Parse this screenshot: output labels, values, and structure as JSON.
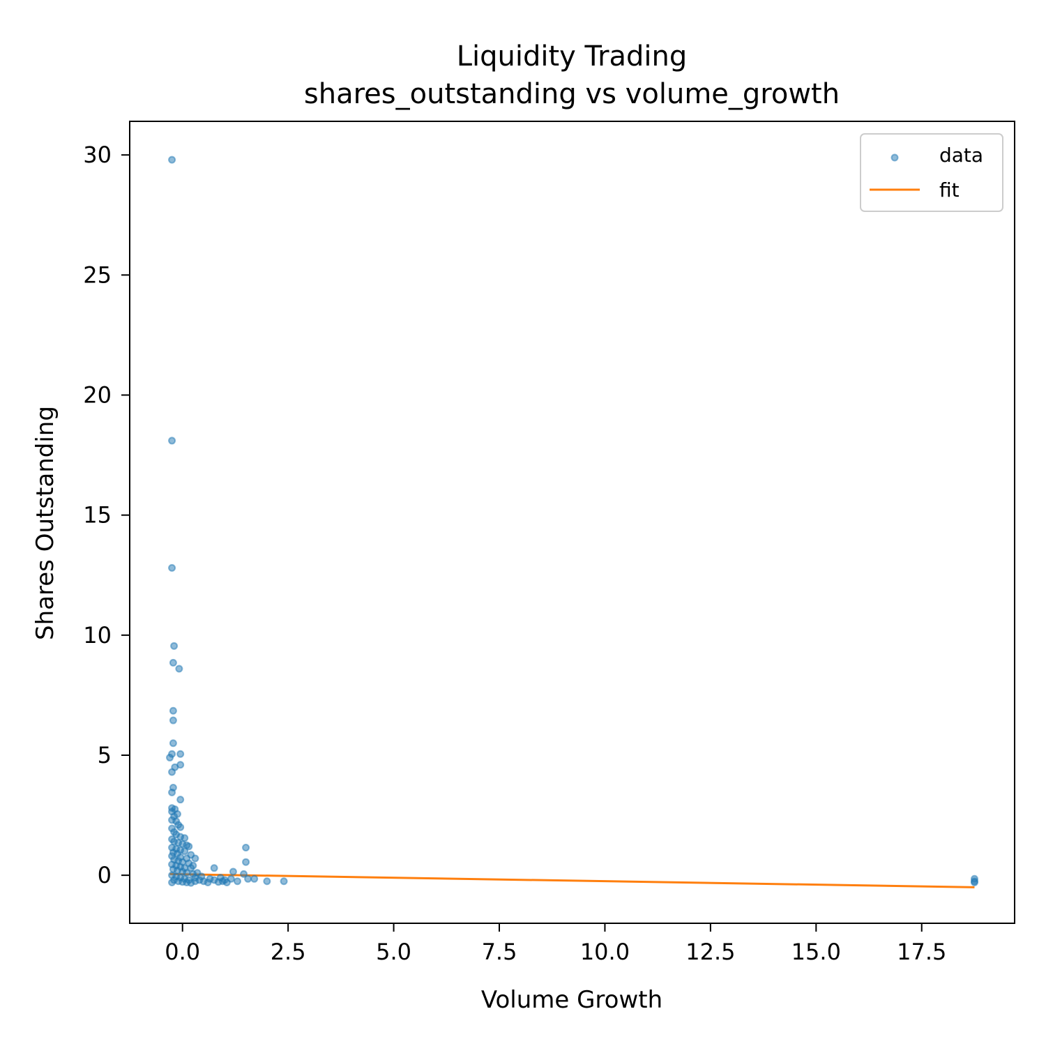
{
  "chart_data": {
    "type": "scatter",
    "title": "Liquidity Trading",
    "subtitle": "shares_outstanding vs volume_growth",
    "xlabel": "Volume Growth",
    "ylabel": "Shares Outstanding",
    "xlim": [
      -1.25,
      19.7
    ],
    "ylim": [
      -2.0,
      31.4
    ],
    "xticks": [
      0.0,
      2.5,
      5.0,
      7.5,
      10.0,
      12.5,
      15.0,
      17.5
    ],
    "xtick_labels": [
      "0.0",
      "2.5",
      "5.0",
      "7.5",
      "10.0",
      "12.5",
      "15.0",
      "17.5"
    ],
    "yticks": [
      0,
      5,
      10,
      15,
      20,
      25,
      30
    ],
    "ytick_labels": [
      "0",
      "5",
      "10",
      "15",
      "20",
      "25",
      "30"
    ],
    "grid": false,
    "legend": {
      "placement": "top-right",
      "entries": [
        "data",
        "fit"
      ]
    },
    "colors": {
      "data": "#1f77b4",
      "fit": "#ff7f0e"
    },
    "series": [
      {
        "name": "data",
        "kind": "scatter",
        "points": [
          [
            -0.25,
            29.8
          ],
          [
            -0.25,
            18.1
          ],
          [
            -0.25,
            12.8
          ],
          [
            -0.2,
            9.55
          ],
          [
            -0.22,
            8.85
          ],
          [
            -0.08,
            8.6
          ],
          [
            -0.22,
            6.85
          ],
          [
            -0.22,
            6.45
          ],
          [
            -0.22,
            5.5
          ],
          [
            -0.25,
            5.05
          ],
          [
            -0.3,
            4.9
          ],
          [
            -0.05,
            5.05
          ],
          [
            -0.05,
            4.6
          ],
          [
            -0.18,
            4.5
          ],
          [
            -0.25,
            4.3
          ],
          [
            -0.22,
            3.65
          ],
          [
            -0.25,
            3.45
          ],
          [
            -0.05,
            3.15
          ],
          [
            -0.25,
            2.8
          ],
          [
            -0.18,
            2.75
          ],
          [
            -0.25,
            2.65
          ],
          [
            -0.12,
            2.55
          ],
          [
            -0.2,
            2.45
          ],
          [
            -0.25,
            2.3
          ],
          [
            -0.15,
            2.25
          ],
          [
            -0.1,
            2.1
          ],
          [
            -0.05,
            2.0
          ],
          [
            -0.25,
            1.95
          ],
          [
            -0.2,
            1.8
          ],
          [
            -0.15,
            1.7
          ],
          [
            -0.05,
            1.6
          ],
          [
            0.05,
            1.55
          ],
          [
            -0.25,
            1.5
          ],
          [
            -0.2,
            1.4
          ],
          [
            -0.1,
            1.35
          ],
          [
            0.0,
            1.3
          ],
          [
            0.1,
            1.25
          ],
          [
            0.15,
            1.2
          ],
          [
            -0.25,
            1.15
          ],
          [
            -0.15,
            1.1
          ],
          [
            -0.05,
            1.05
          ],
          [
            0.05,
            1.0
          ],
          [
            -0.22,
            0.95
          ],
          [
            -0.12,
            0.9
          ],
          [
            0.2,
            0.85
          ],
          [
            -0.25,
            0.8
          ],
          [
            -0.05,
            0.75
          ],
          [
            0.1,
            0.7
          ],
          [
            0.3,
            0.7
          ],
          [
            -0.2,
            0.65
          ],
          [
            -0.1,
            0.6
          ],
          [
            0.0,
            0.55
          ],
          [
            0.15,
            0.5
          ],
          [
            -0.25,
            0.45
          ],
          [
            -0.15,
            0.4
          ],
          [
            -0.05,
            0.35
          ],
          [
            0.05,
            0.3
          ],
          [
            0.2,
            0.3
          ],
          [
            -0.22,
            0.25
          ],
          [
            -0.12,
            0.2
          ],
          [
            0.0,
            0.15
          ],
          [
            0.1,
            0.1
          ],
          [
            0.25,
            0.05
          ],
          [
            -0.25,
            0.0
          ],
          [
            -0.15,
            -0.05
          ],
          [
            -0.05,
            -0.1
          ],
          [
            0.05,
            -0.15
          ],
          [
            0.15,
            -0.2
          ],
          [
            0.3,
            -0.25
          ],
          [
            -0.2,
            -0.2
          ],
          [
            -0.1,
            -0.25
          ],
          [
            0.0,
            -0.28
          ],
          [
            0.1,
            -0.3
          ],
          [
            0.2,
            -0.32
          ],
          [
            -0.25,
            -0.3
          ],
          [
            0.4,
            -0.2
          ],
          [
            0.5,
            -0.25
          ],
          [
            0.6,
            -0.3
          ],
          [
            0.75,
            -0.2
          ],
          [
            0.75,
            0.3
          ],
          [
            0.85,
            -0.28
          ],
          [
            0.95,
            -0.25
          ],
          [
            1.05,
            -0.3
          ],
          [
            1.15,
            -0.15
          ],
          [
            1.2,
            0.15
          ],
          [
            1.3,
            -0.25
          ],
          [
            1.5,
            1.15
          ],
          [
            1.5,
            0.55
          ],
          [
            1.45,
            0.05
          ],
          [
            1.55,
            -0.15
          ],
          [
            1.7,
            -0.15
          ],
          [
            2.0,
            -0.25
          ],
          [
            2.4,
            -0.25
          ],
          [
            0.3,
            -0.1
          ],
          [
            0.45,
            -0.05
          ],
          [
            0.65,
            -0.15
          ],
          [
            0.9,
            -0.1
          ],
          [
            1.0,
            -0.2
          ],
          [
            0.25,
            0.4
          ],
          [
            0.35,
            0.1
          ],
          [
            18.75,
            -0.15
          ],
          [
            18.75,
            -0.25
          ],
          [
            18.75,
            -0.3
          ]
        ]
      },
      {
        "name": "fit",
        "kind": "line",
        "x": [
          -0.3,
          18.75
        ],
        "y": [
          0.05,
          -0.5
        ]
      }
    ]
  }
}
